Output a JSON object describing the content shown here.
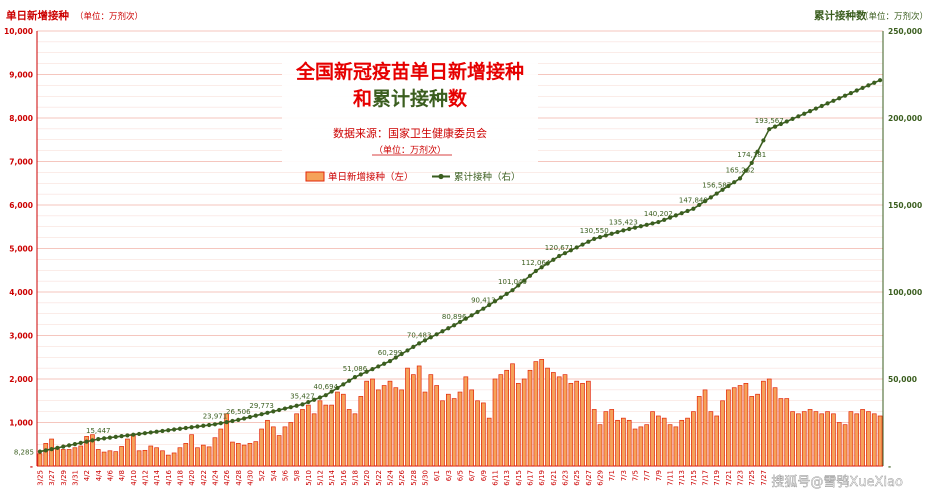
{
  "chart_data": {
    "type": "bar",
    "title_line1": "全国新冠疫苗单日新增接种",
    "title_line2_a": "和",
    "title_line2_b": "累计接种",
    "title_line2_c": "数",
    "source": "数据来源：国家卫生健康委员会",
    "unit": "（单位：万剂次）",
    "left_axis_title": "单日新增接种",
    "left_axis_unit": "（单位：万剂次）",
    "right_axis_title": "累计接种数",
    "right_axis_unit": "（单位：万剂次）",
    "watermark": "搜狐号@雪鸮XueXiao",
    "legend": [
      {
        "name": "单日新增接种（左）",
        "kind": "bar",
        "color": "#f5a25a",
        "edge": "#e2270a"
      },
      {
        "name": "累计接种（右）",
        "kind": "line",
        "color": "#3b5e1f"
      }
    ],
    "y_left": {
      "min": 0,
      "max": 10000,
      "ticks": [
        "-",
        "1,000",
        "2,000",
        "3,000",
        "4,000",
        "5,000",
        "6,000",
        "7,000",
        "8,000",
        "9,000",
        "10,000"
      ],
      "color": "#cc0000"
    },
    "y_right": {
      "min": 0,
      "max": 250000,
      "ticks": [
        "-",
        "50,000",
        "100,000",
        "150,000",
        "200,000",
        "250,000"
      ],
      "color": "#3b5e1f"
    },
    "grid": true,
    "x_start": "2021-03-25",
    "x_end": "2021-07-28",
    "x_tick_labels": [
      "3/25",
      "3/27",
      "3/29",
      "3/31",
      "4/2",
      "4/4",
      "4/6",
      "4/8",
      "4/10",
      "4/12",
      "4/14",
      "4/16",
      "4/18",
      "4/20",
      "4/22",
      "4/24",
      "4/26",
      "4/28",
      "4/30",
      "5/2",
      "5/4",
      "5/6",
      "5/8",
      "5/10",
      "5/12",
      "5/14",
      "5/16",
      "5/18",
      "5/20",
      "5/22",
      "5/24",
      "5/26",
      "5/28",
      "5/30",
      "6/1",
      "6/3",
      "6/5",
      "6/7",
      "6/9",
      "6/11",
      "6/13",
      "6/15",
      "6/17",
      "6/19",
      "6/21",
      "6/23",
      "6/25",
      "6/27",
      "6/29",
      "7/1",
      "7/3",
      "7/5",
      "7/7",
      "7/9",
      "7/11",
      "7/13",
      "7/15",
      "7/17",
      "7/19",
      "7/21",
      "7/23",
      "7/25",
      "7/27"
    ],
    "daily": [
      280,
      520,
      620,
      420,
      380,
      380,
      420,
      460,
      680,
      720,
      380,
      320,
      350,
      330,
      450,
      620,
      720,
      350,
      360,
      460,
      420,
      350,
      250,
      300,
      420,
      520,
      720,
      420,
      480,
      440,
      650,
      850,
      1200,
      550,
      520,
      480,
      520,
      560,
      850,
      1050,
      900,
      700,
      900,
      1000,
      1200,
      1300,
      1400,
      1200,
      1500,
      1400,
      1400,
      1700,
      1650,
      1300,
      1200,
      1600,
      1950,
      2000,
      1750,
      1850,
      1950,
      1800,
      1750,
      2250,
      2100,
      2300,
      1700,
      2100,
      1850,
      1500,
      1650,
      1550,
      1700,
      2050,
      1750,
      1500,
      1450,
      1100,
      2000,
      2100,
      2200,
      2350,
      1900,
      2000,
      2200,
      2400,
      2450,
      2250,
      2150,
      2050,
      2100,
      1900,
      1950,
      1900,
      1950,
      1300,
      950,
      1250,
      1300,
      1050,
      1100,
      1050,
      850,
      900,
      950,
      1250,
      1150,
      1100,
      950,
      900,
      1050,
      1100,
      1250,
      1600,
      1750,
      1250,
      1150,
      1500,
      1750,
      1800,
      1850,
      1900,
      1600,
      1650,
      1950,
      2000,
      1800,
      1550,
      1550,
      1250,
      1200,
      1250,
      1300,
      1250,
      1200,
      1250,
      1200,
      1000,
      950,
      1250,
      1200,
      1300,
      1250,
      1200,
      1150
    ],
    "cumulative_start": 8285,
    "cumulative_end": 193567,
    "cumulative_labels": [
      {
        "date": "2021-03-25",
        "value": 8285
      },
      {
        "date": "2021-04-04",
        "value": 15447
      },
      {
        "date": "2021-04-24",
        "value": 23971
      },
      {
        "date": "2021-04-28",
        "value": 26506
      },
      {
        "date": "2021-05-02",
        "value": 29773
      },
      {
        "date": "2021-05-09",
        "value": 35427
      },
      {
        "date": "2021-05-13",
        "value": 40694
      },
      {
        "date": "2021-05-18",
        "value": 51086
      },
      {
        "date": "2021-05-24",
        "value": 60299
      },
      {
        "date": "2021-05-29",
        "value": 70483
      },
      {
        "date": "2021-06-04",
        "value": 80896
      },
      {
        "date": "2021-06-09",
        "value": 90413
      },
      {
        "date": "2021-06-14",
        "value": 101049
      },
      {
        "date": "2021-06-18",
        "value": 112064
      },
      {
        "date": "2021-06-22",
        "value": 120671
      },
      {
        "date": "2021-06-28",
        "value": 130550
      },
      {
        "date": "2021-07-03",
        "value": 135423
      },
      {
        "date": "2021-07-09",
        "value": 140202
      },
      {
        "date": "2021-07-15",
        "value": 147848
      },
      {
        "date": "2021-07-19",
        "value": 156587
      },
      {
        "date": "2021-07-23",
        "value": 165282
      },
      {
        "date": "2021-07-25",
        "value": 174181
      },
      {
        "date": "2021-07-28",
        "value": 193567
      }
    ]
  }
}
